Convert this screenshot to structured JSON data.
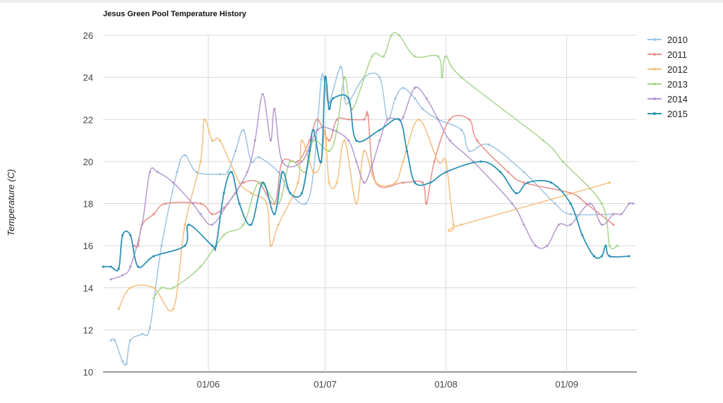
{
  "chart_data": {
    "type": "line",
    "title": "Jesus Green Pool Temperature History",
    "xlabel": "",
    "ylabel": "Temperature (C)",
    "x_unit": "date (dd/mm, years overlaid)",
    "xlim": [
      "05/05",
      "19/09"
    ],
    "ylim": [
      10,
      26
    ],
    "yticks": [
      10,
      12,
      14,
      16,
      18,
      20,
      22,
      24,
      26
    ],
    "xticks": [
      "01/06",
      "01/07",
      "01/08",
      "01/09"
    ],
    "grid": true,
    "legend_position": "right",
    "series": [
      {
        "name": "2010",
        "color": "#9ec4e2",
        "points": [
          [
            "07/05",
            11.5
          ],
          [
            "08/05",
            11.5
          ],
          [
            "10/05",
            10.5
          ],
          [
            "11/05",
            10.4
          ],
          [
            "12/05",
            11.5
          ],
          [
            "15/05",
            11.8
          ],
          [
            "17/05",
            12.1
          ],
          [
            "20/05",
            16.0
          ],
          [
            "24/05",
            19.5
          ],
          [
            "26/05",
            20.3
          ],
          [
            "29/05",
            19.5
          ],
          [
            "04/06",
            19.4
          ],
          [
            "06/06",
            19.5
          ],
          [
            "08/06",
            20.5
          ],
          [
            "10/06",
            21.5
          ],
          [
            "12/06",
            20.0
          ],
          [
            "14/06",
            20.2
          ],
          [
            "19/06",
            19.5
          ],
          [
            "22/06",
            18.5
          ],
          [
            "26/06",
            18.0
          ],
          [
            "28/06",
            19.5
          ],
          [
            "30/06",
            23.9
          ],
          [
            "01/07",
            23.6
          ],
          [
            "02/07",
            22.8
          ],
          [
            "05/07",
            24.5
          ],
          [
            "06/07",
            23.0
          ],
          [
            "07/07",
            22.8
          ],
          [
            "11/07",
            24.0
          ],
          [
            "15/07",
            24.0
          ],
          [
            "17/07",
            22.0
          ],
          [
            "19/07",
            23.0
          ],
          [
            "21/07",
            23.5
          ],
          [
            "24/07",
            23.0
          ],
          [
            "26/07",
            22.5
          ],
          [
            "30/07",
            22.0
          ],
          [
            "05/08",
            21.5
          ],
          [
            "07/08",
            20.5
          ],
          [
            "12/08",
            20.8
          ],
          [
            "21/08",
            19.5
          ],
          [
            "29/08",
            18.0
          ],
          [
            "02/09",
            17.5
          ],
          [
            "13/09",
            17.5
          ]
        ]
      },
      {
        "name": "2011",
        "color": "#e8908a",
        "points": [
          [
            "13/05",
            16.0
          ],
          [
            "14/05",
            16.0
          ],
          [
            "15/05",
            17.0
          ],
          [
            "18/05",
            17.5
          ],
          [
            "21/05",
            18.0
          ],
          [
            "30/05",
            18.0
          ],
          [
            "02/06",
            17.5
          ],
          [
            "05/06",
            17.8
          ],
          [
            "08/06",
            18.5
          ],
          [
            "10/06",
            19.0
          ],
          [
            "14/06",
            19.0
          ],
          [
            "18/06",
            18.0
          ],
          [
            "20/06",
            20.0
          ],
          [
            "24/06",
            20.0
          ],
          [
            "27/06",
            21.0
          ],
          [
            "29/06",
            22.0
          ],
          [
            "02/07",
            21.0
          ],
          [
            "04/07",
            22.0
          ],
          [
            "07/07",
            22.0
          ],
          [
            "11/07",
            22.0
          ],
          [
            "12/07",
            22.2
          ],
          [
            "14/07",
            19.0
          ],
          [
            "21/07",
            19.0
          ],
          [
            "26/07",
            19.0
          ],
          [
            "27/07",
            18.0
          ],
          [
            "29/07",
            20.0
          ],
          [
            "02/08",
            22.0
          ],
          [
            "07/08",
            22.0
          ],
          [
            "09/08",
            21.0
          ],
          [
            "17/08",
            19.5
          ],
          [
            "21/08",
            19.0
          ],
          [
            "02/09",
            18.5
          ],
          [
            "06/09",
            18.0
          ],
          [
            "13/09",
            17.0
          ]
        ]
      },
      {
        "name": "2012",
        "color": "#f5bf7e",
        "points": [
          [
            "09/05",
            13.0
          ],
          [
            "12/05",
            14.0
          ],
          [
            "18/05",
            14.0
          ],
          [
            "23/05",
            13.0
          ],
          [
            "26/05",
            17.0
          ],
          [
            "30/05",
            20.0
          ],
          [
            "31/05",
            22.0
          ],
          [
            "02/06",
            21.0
          ],
          [
            "04/06",
            21.0
          ],
          [
            "09/06",
            19.0
          ],
          [
            "12/06",
            18.5
          ],
          [
            "16/06",
            18.0
          ],
          [
            "17/06",
            16.0
          ],
          [
            "19/06",
            17.0
          ],
          [
            "24/06",
            19.0
          ],
          [
            "25/06",
            21.0
          ],
          [
            "28/06",
            19.5
          ],
          [
            "30/06",
            20.0
          ],
          [
            "01/07",
            21.5
          ],
          [
            "02/07",
            19.0
          ],
          [
            "04/07",
            19.0
          ],
          [
            "06/07",
            21.0
          ],
          [
            "09/07",
            18.0
          ],
          [
            "11/07",
            20.5
          ],
          [
            "14/07",
            19.0
          ],
          [
            "19/07",
            19.0
          ],
          [
            "21/07",
            20.0
          ],
          [
            "25/07",
            22.0
          ],
          [
            "30/07",
            20.0
          ],
          [
            "01/08",
            20.0
          ],
          [
            "03/08",
            17.0
          ],
          [
            "05/08",
            17.0
          ],
          [
            "12/09",
            19.0
          ]
        ]
      },
      {
        "name": "2013",
        "color": "#a8d58c",
        "points": [
          [
            "18/05",
            13.5
          ],
          [
            "20/05",
            14.0
          ],
          [
            "23/05",
            14.0
          ],
          [
            "30/05",
            15.0
          ],
          [
            "05/06",
            16.5
          ],
          [
            "10/06",
            17.0
          ],
          [
            "14/06",
            19.0
          ],
          [
            "19/06",
            18.0
          ],
          [
            "22/06",
            20.0
          ],
          [
            "26/06",
            19.5
          ],
          [
            "28/06",
            21.0
          ],
          [
            "02/07",
            20.5
          ],
          [
            "04/07",
            21.5
          ],
          [
            "06/07",
            24.0
          ],
          [
            "08/07",
            22.5
          ],
          [
            "13/07",
            25.0
          ],
          [
            "16/07",
            25.0
          ],
          [
            "18/07",
            26.0
          ],
          [
            "20/07",
            26.0
          ],
          [
            "24/07",
            25.0
          ],
          [
            "30/07",
            25.0
          ],
          [
            "31/07",
            24.0
          ],
          [
            "01/08",
            25.0
          ],
          [
            "05/08",
            24.0
          ],
          [
            "26/08",
            21.0
          ],
          [
            "31/08",
            20.0
          ],
          [
            "10/09",
            18.0
          ],
          [
            "12/09",
            16.0
          ],
          [
            "14/09",
            16.0
          ]
        ]
      },
      {
        "name": "2014",
        "color": "#b49ad0",
        "points": [
          [
            "07/05",
            14.4
          ],
          [
            "10/05",
            14.6
          ],
          [
            "12/05",
            15.0
          ],
          [
            "15/05",
            17.0
          ],
          [
            "17/05",
            19.5
          ],
          [
            "19/05",
            19.5
          ],
          [
            "23/05",
            19.0
          ],
          [
            "28/05",
            18.0
          ],
          [
            "30/05",
            17.5
          ],
          [
            "02/06",
            17.0
          ],
          [
            "06/06",
            18.0
          ],
          [
            "11/06",
            19.5
          ],
          [
            "13/06",
            21.0
          ],
          [
            "15/06",
            23.2
          ],
          [
            "17/06",
            21.0
          ],
          [
            "18/06",
            22.5
          ],
          [
            "20/06",
            20.0
          ],
          [
            "25/06",
            20.0
          ],
          [
            "29/06",
            21.5
          ],
          [
            "03/07",
            21.5
          ],
          [
            "07/07",
            21.0
          ],
          [
            "09/07",
            20.0
          ],
          [
            "11/07",
            19.0
          ],
          [
            "13/07",
            19.8
          ],
          [
            "15/07",
            21.0
          ],
          [
            "17/07",
            22.0
          ],
          [
            "20/07",
            22.0
          ],
          [
            "21/07",
            22.1
          ],
          [
            "24/07",
            23.5
          ],
          [
            "27/07",
            23.0
          ],
          [
            "30/07",
            22.0
          ],
          [
            "02/08",
            21.0
          ],
          [
            "08/08",
            20.0
          ],
          [
            "18/08",
            18.0
          ],
          [
            "21/08",
            17.0
          ],
          [
            "24/08",
            16.0
          ],
          [
            "27/08",
            16.0
          ],
          [
            "30/08",
            17.0
          ],
          [
            "02/09",
            17.0
          ],
          [
            "07/09",
            18.0
          ],
          [
            "10/09",
            17.0
          ],
          [
            "13/09",
            17.5
          ],
          [
            "15/09",
            17.5
          ],
          [
            "17/09",
            18.0
          ],
          [
            "18/09",
            18.0
          ]
        ]
      },
      {
        "name": "2015",
        "color": "#2e92b5",
        "points": [
          [
            "05/05",
            15.0
          ],
          [
            "07/05",
            15.0
          ],
          [
            "09/05",
            14.9
          ],
          [
            "10/05",
            16.5
          ],
          [
            "12/05",
            16.5
          ],
          [
            "14/05",
            15.0
          ],
          [
            "18/05",
            15.5
          ],
          [
            "26/05",
            16.0
          ],
          [
            "27/05",
            17.0
          ],
          [
            "02/06",
            16.0
          ],
          [
            "03/06",
            16.0
          ],
          [
            "05/06",
            18.5
          ],
          [
            "07/06",
            19.5
          ],
          [
            "09/06",
            18.0
          ],
          [
            "12/06",
            17.0
          ],
          [
            "15/06",
            19.0
          ],
          [
            "18/06",
            17.5
          ],
          [
            "20/06",
            19.5
          ],
          [
            "22/06",
            18.5
          ],
          [
            "25/06",
            18.5
          ],
          [
            "27/06",
            20.5
          ],
          [
            "28/06",
            21.5
          ],
          [
            "30/06",
            20.0
          ],
          [
            "01/07",
            24.0
          ],
          [
            "02/07",
            22.5
          ],
          [
            "03/07",
            23.0
          ],
          [
            "07/07",
            23.0
          ],
          [
            "09/07",
            21.0
          ],
          [
            "15/07",
            21.5
          ],
          [
            "20/07",
            22.0
          ],
          [
            "22/07",
            20.5
          ],
          [
            "24/07",
            19.0
          ],
          [
            "28/07",
            19.0
          ],
          [
            "01/08",
            19.5
          ],
          [
            "10/08",
            20.0
          ],
          [
            "15/08",
            19.5
          ],
          [
            "19/08",
            18.5
          ],
          [
            "22/08",
            19.0
          ],
          [
            "28/08",
            19.0
          ],
          [
            "02/09",
            18.0
          ],
          [
            "05/09",
            16.5
          ],
          [
            "08/09",
            15.5
          ],
          [
            "10/09",
            15.5
          ],
          [
            "11/09",
            16.0
          ],
          [
            "12/09",
            15.5
          ],
          [
            "17/09",
            15.5
          ]
        ]
      }
    ]
  }
}
